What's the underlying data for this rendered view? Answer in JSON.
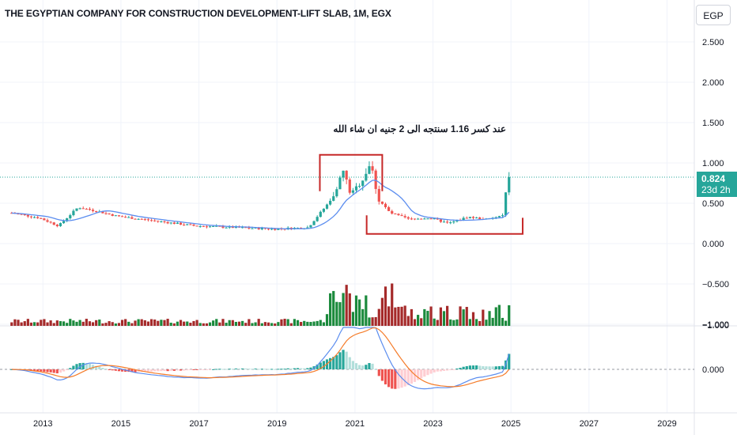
{
  "header": {
    "title": "THE EGYPTIAN COMPANY FOR CONSTRUCTION DEVELOPMENT-LIFT SLAB, 1M, EGX",
    "currency": "EGP"
  },
  "annotation": "عند كسر 1.16 سنتجه الى 2 جنيه ان شاء الله",
  "last_price": {
    "value": "0.824",
    "countdown": "23d 2h",
    "color": "#26a69a"
  },
  "colors": {
    "up": "#26a69a",
    "down": "#ef5350",
    "ma": "#5b8def",
    "drawing": "#c62828",
    "vol_up": "#1b8a3c",
    "vol_down": "#a52a2a",
    "macd": "#5b8def",
    "signal": "#f57c2a"
  },
  "chart_data": {
    "type": "candlestick",
    "interval": "1M",
    "x_ticks": [
      "2013",
      "2015",
      "2017",
      "2019",
      "2021",
      "2023",
      "2025",
      "2027",
      "2029"
    ],
    "price_axis_ticks": [
      "2.500",
      "2.000",
      "1.500",
      "1.000",
      "0.500",
      "0.000",
      "−0.500",
      "−1.000"
    ],
    "macd_axis_ticks": [
      "0.000"
    ],
    "ylim": [
      -1.0,
      2.75
    ],
    "close_series": [
      {
        "x": 2012.3,
        "y": 0.38
      },
      {
        "x": 2013.0,
        "y": 0.32
      },
      {
        "x": 2013.5,
        "y": 0.22
      },
      {
        "x": 2014.0,
        "y": 0.45
      },
      {
        "x": 2014.5,
        "y": 0.4
      },
      {
        "x": 2015.0,
        "y": 0.34
      },
      {
        "x": 2016.0,
        "y": 0.28
      },
      {
        "x": 2017.0,
        "y": 0.22
      },
      {
        "x": 2018.0,
        "y": 0.2
      },
      {
        "x": 2019.0,
        "y": 0.18
      },
      {
        "x": 2019.9,
        "y": 0.2
      },
      {
        "x": 2020.5,
        "y": 0.55
      },
      {
        "x": 2020.8,
        "y": 0.9
      },
      {
        "x": 2021.0,
        "y": 0.6
      },
      {
        "x": 2021.3,
        "y": 0.8
      },
      {
        "x": 2021.5,
        "y": 1.0
      },
      {
        "x": 2021.7,
        "y": 0.55
      },
      {
        "x": 2022.0,
        "y": 0.38
      },
      {
        "x": 2022.5,
        "y": 0.3
      },
      {
        "x": 2023.0,
        "y": 0.32
      },
      {
        "x": 2023.5,
        "y": 0.25
      },
      {
        "x": 2024.0,
        "y": 0.33
      },
      {
        "x": 2024.5,
        "y": 0.3
      },
      {
        "x": 2024.9,
        "y": 0.35
      },
      {
        "x": 2025.0,
        "y": 0.75
      },
      {
        "x": 2025.1,
        "y": 0.824
      }
    ],
    "annotation_box_top": {
      "x_from": 2020.2,
      "x_to": 2021.8,
      "y": 1.1
    },
    "annotation_box_bottom": {
      "x_from": 2021.4,
      "x_to": 2025.4,
      "y": 0.12
    }
  }
}
